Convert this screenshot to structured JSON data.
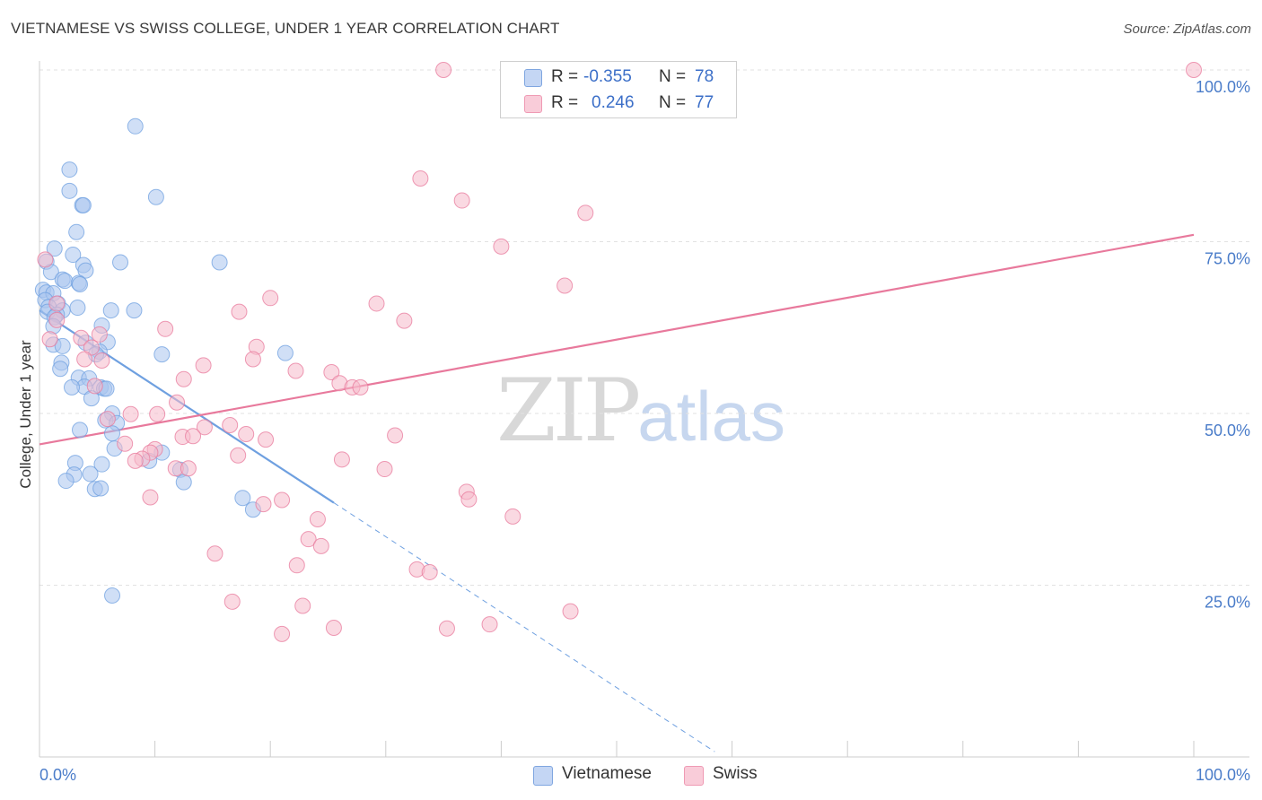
{
  "title": "VIETNAMESE VS SWISS COLLEGE, UNDER 1 YEAR CORRELATION CHART",
  "source": "Source: ZipAtlas.com",
  "watermark": {
    "zip": "ZIP",
    "atlas": "atlas"
  },
  "legend": {
    "rows": [
      {
        "r_label": "R =",
        "r_value": "-0.355",
        "n_label": "N =",
        "n_value": "78",
        "color": "#a9c4ee"
      },
      {
        "r_label": "R =",
        "r_value": "0.246",
        "n_label": "N =",
        "n_value": "77",
        "color": "#f6b9cb"
      }
    ]
  },
  "bottom_legend": [
    {
      "label": "Vietnamese",
      "color": "#a9c4ee"
    },
    {
      "label": "Swiss",
      "color": "#f6b9cb"
    }
  ],
  "chart_data": {
    "type": "scatter",
    "title": "VIETNAMESE VS SWISS COLLEGE, UNDER 1 YEAR CORRELATION CHART",
    "xlabel": "",
    "ylabel": "College, Under 1 year",
    "xlim": [
      0,
      100
    ],
    "ylim": [
      0,
      100
    ],
    "x_tick_labels": [
      "0.0%",
      "100.0%"
    ],
    "y_tick_labels": [
      "25.0%",
      "50.0%",
      "75.0%",
      "100.0%"
    ],
    "y_ticks": [
      25,
      50,
      75,
      100
    ],
    "grid": true,
    "series": [
      {
        "name": "Vietnamese",
        "color": "#6fa0e0",
        "fill": "#a9c4ee",
        "trend": {
          "x0": 0,
          "y0": 65,
          "x1": 25.5,
          "y1": 37,
          "dash_to_x": 58.5
        },
        "points": [
          [
            8.3,
            91.8
          ],
          [
            2.6,
            85.5
          ],
          [
            2.6,
            82.4
          ],
          [
            10.1,
            81.5
          ],
          [
            3.7,
            80.3
          ],
          [
            3.8,
            80.3
          ],
          [
            3.2,
            76.4
          ],
          [
            1.3,
            74.0
          ],
          [
            2.9,
            73.1
          ],
          [
            0.6,
            72.1
          ],
          [
            7.0,
            72.0
          ],
          [
            15.6,
            72.0
          ],
          [
            3.8,
            71.6
          ],
          [
            4.0,
            70.8
          ],
          [
            1.0,
            70.6
          ],
          [
            2.0,
            69.5
          ],
          [
            2.2,
            69.3
          ],
          [
            3.4,
            69.0
          ],
          [
            3.5,
            68.8
          ],
          [
            0.3,
            68.0
          ],
          [
            0.6,
            67.6
          ],
          [
            1.2,
            67.5
          ],
          [
            0.5,
            66.5
          ],
          [
            1.6,
            66.0
          ],
          [
            0.8,
            65.5
          ],
          [
            3.3,
            65.4
          ],
          [
            8.2,
            65.0
          ],
          [
            6.2,
            65.0
          ],
          [
            2.0,
            65.0
          ],
          [
            0.7,
            64.8
          ],
          [
            1.5,
            64.4
          ],
          [
            1.3,
            64.0
          ],
          [
            5.4,
            62.8
          ],
          [
            1.2,
            62.7
          ],
          [
            5.9,
            60.4
          ],
          [
            4.0,
            60.3
          ],
          [
            1.2,
            60.0
          ],
          [
            2.0,
            59.8
          ],
          [
            5.2,
            59.0
          ],
          [
            10.6,
            58.6
          ],
          [
            21.3,
            58.8
          ],
          [
            4.9,
            58.6
          ],
          [
            1.9,
            57.4
          ],
          [
            1.8,
            56.5
          ],
          [
            3.4,
            55.2
          ],
          [
            4.3,
            55.1
          ],
          [
            3.9,
            53.9
          ],
          [
            2.8,
            53.8
          ],
          [
            5.3,
            53.8
          ],
          [
            5.6,
            53.6
          ],
          [
            5.8,
            53.6
          ],
          [
            4.5,
            52.2
          ],
          [
            6.3,
            50.0
          ],
          [
            5.7,
            49.0
          ],
          [
            6.7,
            48.6
          ],
          [
            3.5,
            47.6
          ],
          [
            6.3,
            47.1
          ],
          [
            6.5,
            44.9
          ],
          [
            10.6,
            44.3
          ],
          [
            9.5,
            43.1
          ],
          [
            3.1,
            42.8
          ],
          [
            5.4,
            42.6
          ],
          [
            12.2,
            41.8
          ],
          [
            4.4,
            41.2
          ],
          [
            3.0,
            41.1
          ],
          [
            2.3,
            40.2
          ],
          [
            12.5,
            40.0
          ],
          [
            4.8,
            39.0
          ],
          [
            5.3,
            39.1
          ],
          [
            17.6,
            37.7
          ],
          [
            18.5,
            36.0
          ],
          [
            6.3,
            23.5
          ]
        ]
      },
      {
        "name": "Swiss",
        "color": "#e8799c",
        "fill": "#f6b9cb",
        "trend": {
          "x0": 0,
          "y0": 45.5,
          "x1": 100,
          "y1": 76
        },
        "points": [
          [
            35.0,
            100.0
          ],
          [
            100.0,
            100.0
          ],
          [
            33.0,
            84.2
          ],
          [
            36.6,
            81.0
          ],
          [
            47.3,
            79.2
          ],
          [
            40.0,
            74.3
          ],
          [
            0.5,
            72.4
          ],
          [
            45.5,
            68.6
          ],
          [
            20.0,
            66.8
          ],
          [
            29.2,
            66.0
          ],
          [
            1.5,
            66.0
          ],
          [
            17.3,
            64.8
          ],
          [
            31.6,
            63.5
          ],
          [
            1.5,
            63.6
          ],
          [
            10.9,
            62.3
          ],
          [
            3.6,
            61.0
          ],
          [
            5.2,
            61.5
          ],
          [
            0.9,
            60.8
          ],
          [
            18.8,
            59.7
          ],
          [
            4.5,
            59.6
          ],
          [
            18.5,
            57.9
          ],
          [
            5.4,
            57.7
          ],
          [
            3.9,
            57.9
          ],
          [
            14.2,
            57.0
          ],
          [
            22.2,
            56.2
          ],
          [
            25.3,
            56.0
          ],
          [
            12.5,
            55.0
          ],
          [
            26.0,
            54.4
          ],
          [
            27.1,
            53.8
          ],
          [
            27.8,
            53.8
          ],
          [
            4.8,
            54.0
          ],
          [
            11.9,
            51.6
          ],
          [
            7.9,
            49.9
          ],
          [
            10.2,
            49.9
          ],
          [
            5.9,
            49.2
          ],
          [
            14.3,
            48.0
          ],
          [
            16.5,
            48.3
          ],
          [
            17.9,
            47.0
          ],
          [
            12.4,
            46.6
          ],
          [
            13.3,
            46.7
          ],
          [
            30.8,
            46.8
          ],
          [
            19.6,
            46.2
          ],
          [
            7.4,
            45.6
          ],
          [
            10.0,
            44.8
          ],
          [
            9.6,
            44.3
          ],
          [
            17.2,
            43.9
          ],
          [
            8.9,
            43.4
          ],
          [
            8.3,
            43.1
          ],
          [
            26.2,
            43.3
          ],
          [
            11.8,
            42.0
          ],
          [
            12.9,
            42.0
          ],
          [
            29.9,
            41.9
          ],
          [
            37.0,
            38.6
          ],
          [
            37.2,
            37.5
          ],
          [
            9.6,
            37.8
          ],
          [
            21.0,
            37.4
          ],
          [
            19.4,
            36.8
          ],
          [
            24.1,
            34.6
          ],
          [
            41.0,
            35.0
          ],
          [
            23.3,
            31.7
          ],
          [
            24.4,
            30.7
          ],
          [
            15.2,
            29.6
          ],
          [
            22.3,
            27.9
          ],
          [
            32.7,
            27.3
          ],
          [
            33.8,
            26.9
          ],
          [
            16.7,
            22.6
          ],
          [
            22.8,
            22.0
          ],
          [
            46.0,
            21.2
          ],
          [
            39.0,
            19.3
          ],
          [
            25.5,
            18.8
          ],
          [
            35.3,
            18.7
          ],
          [
            21.0,
            17.9
          ]
        ]
      }
    ]
  }
}
